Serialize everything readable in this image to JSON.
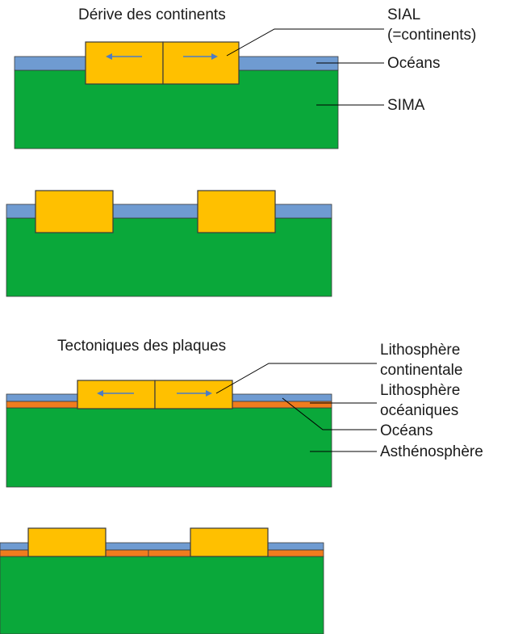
{
  "titles": {
    "drift": "Dérive des continents",
    "tectonics": "Tectoniques des plaques"
  },
  "labels_drift": {
    "sial": [
      "SIAL",
      "(=continents)"
    ],
    "oceans": "Océans",
    "sima": "SIMA"
  },
  "labels_tectonics": {
    "continental": [
      "Lithosphère",
      "continentale"
    ],
    "oceanic": [
      "Lithosphère",
      "océaniques"
    ],
    "oceans": "Océans",
    "asthenosphere": "Asthénosphère"
  },
  "colors": {
    "mantle": "#0aa83a",
    "ocean": "#6f9bd1",
    "continent": "#ffc000",
    "oceanic_lithosphere": "#f07c1e",
    "outline": "#3a3a3a",
    "arrow": "#4d7cc2",
    "leader": "#000000"
  }
}
